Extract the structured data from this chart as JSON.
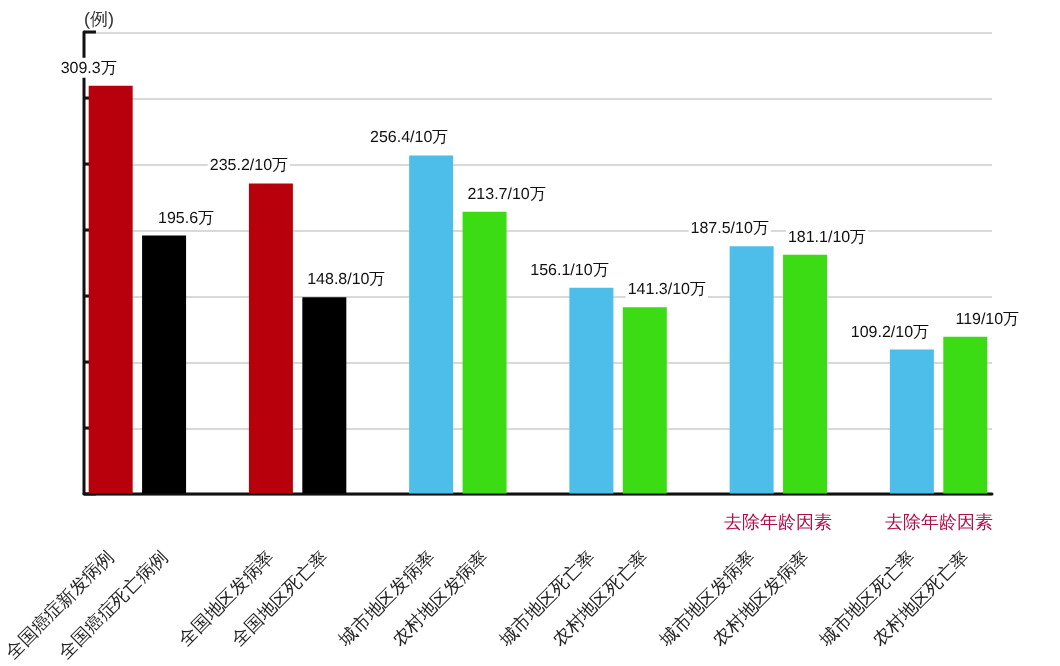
{
  "chart_data": {
    "type": "bar",
    "ylabel": "(例)",
    "categories": [
      "全国癌症新发病例",
      "全国癌症死亡病例",
      null,
      "全国地区发病率",
      "全国地区死亡率",
      null,
      "城市地区发病率",
      "农村地区发病率",
      null,
      "城市地区死亡率",
      "农村地区死亡率",
      null,
      "城市地区发病率",
      "农村地区发病率",
      null,
      "城市地区死亡率",
      "农村地区死亡率"
    ],
    "values": [
      309.3,
      195.6,
      null,
      235.2,
      148.8,
      null,
      256.4,
      213.7,
      null,
      156.1,
      141.3,
      null,
      187.5,
      181.1,
      null,
      109.2,
      119
    ],
    "value_labels": [
      "309.3万",
      "195.6万",
      null,
      "235.2/10万",
      "148.8/10万",
      null,
      "256.4/10万",
      "213.7/10万",
      null,
      "156.1/10万",
      "141.3/10万",
      null,
      "187.5/10万",
      "181.1/10万",
      null,
      "109.2/10万",
      "119/10万"
    ],
    "colors": [
      "#b8000c",
      "#000000",
      null,
      "#b8000c",
      "#000000",
      null,
      "#4dbde9",
      "#3cdc14",
      null,
      "#4dbde9",
      "#3cdc14",
      null,
      "#4dbde9",
      "#3cdc14",
      null,
      "#4dbde9",
      "#3cdc14"
    ],
    "ylim": [
      0,
      350
    ],
    "yticks": [
      {
        "value": 0,
        "label": null
      },
      {
        "value": 50,
        "label": null
      },
      {
        "value": 100,
        "label": null
      },
      {
        "value": 150,
        "label": null
      },
      {
        "value": 200,
        "label": null
      },
      {
        "value": 250,
        "label": null
      },
      {
        "value": 300,
        "label": null
      },
      {
        "value": 350,
        "label": null
      }
    ],
    "grid": "y",
    "annotations": [
      "去除年龄因素",
      "去除年龄因素"
    ]
  }
}
